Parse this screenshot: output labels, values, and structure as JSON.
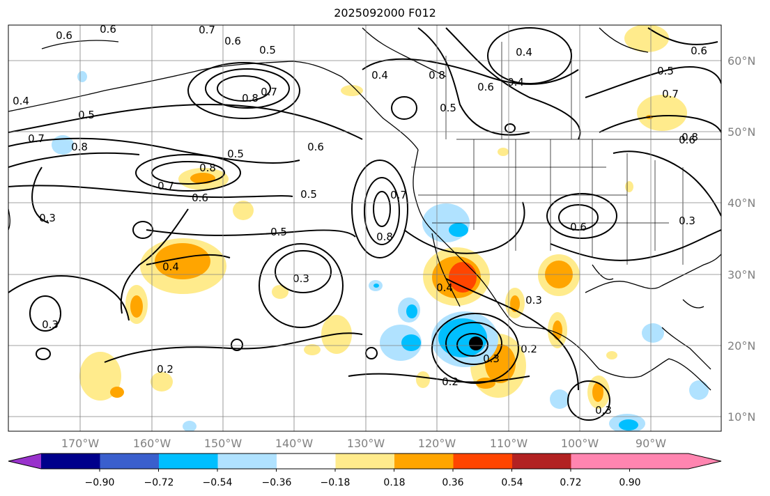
{
  "title": "2025092000 F012",
  "lon_ticks": [
    "170°W",
    "160°W",
    "150°W",
    "140°W",
    "130°W",
    "120°W",
    "110°W",
    "100°W",
    "90°W"
  ],
  "lat_ticks": [
    "60°N",
    "50°N",
    "40°N",
    "30°N",
    "20°N",
    "10°N"
  ],
  "colorbar": {
    "colors": [
      "#9932cc",
      "#00008b",
      "#3a5fcd",
      "#00bfff",
      "#b0e2ff",
      "#ffffff",
      "#ffeb8c",
      "#ffa500",
      "#ff4500",
      "#b22222",
      "#ff85b0"
    ],
    "labels": [
      "−0.90",
      "−0.72",
      "−0.54",
      "−0.36",
      "−0.18",
      "0.18",
      "0.36",
      "0.54",
      "0.72",
      "0.90"
    ]
  },
  "contour_labels": [
    "0.6",
    "0.6",
    "0.7",
    "0.6",
    "0.5",
    "0.8",
    "0.7",
    "0.4",
    "0.5",
    "0.7",
    "0.8",
    "0.5",
    "0.8",
    "0.7",
    "0.6",
    "0.5",
    "0.6",
    "0.3",
    "0.4",
    "0.3",
    "0.3",
    "0.5",
    "0.4",
    "0.8",
    "0.8",
    "0.7",
    "0.4",
    "0.4",
    "0.5",
    "0.6",
    "0.7",
    "0.5",
    "0.6",
    "0.3",
    "0.2",
    "0.3",
    "0.3",
    "0.4",
    "0.2",
    "0.2",
    "0.6",
    "0.6",
    "0.3",
    "0.8"
  ]
}
